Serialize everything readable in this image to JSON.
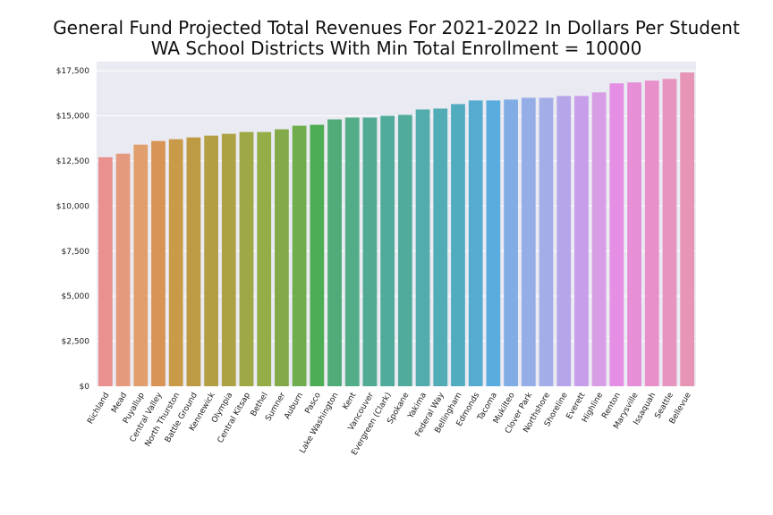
{
  "chart_data": {
    "type": "bar",
    "title": "General Fund Projected Total Revenues For 2021-2022 In Dollars Per Student",
    "subtitle": "WA School Districts With Min Total Enrollment = 10000",
    "xlabel": "",
    "ylabel": "",
    "ylim": [
      0,
      18000
    ],
    "yticks": [
      0,
      2500,
      5000,
      7500,
      10000,
      12500,
      15000,
      17500
    ],
    "ytick_labels": [
      "$0",
      "$2,500",
      "$5,000",
      "$7,500",
      "$10,000",
      "$12,500",
      "$15,000",
      "$17,500"
    ],
    "grid": true,
    "legend": "none",
    "categories": [
      "Richland",
      "Mead",
      "Puyallup",
      "Central Valley",
      "North Thurston",
      "Battle Ground",
      "Kennewick",
      "Olympia",
      "Central Kitsap",
      "Bethel",
      "Sumner",
      "Auburn",
      "Pasco",
      "Lake Washington",
      "Kent",
      "Vancouver",
      "Evergreen (Clark)",
      "Spokane",
      "Yakima",
      "Federal Way",
      "Bellingham",
      "Edmonds",
      "Tacoma",
      "Mukilteo",
      "Clover Park",
      "Northshore",
      "Shoreline",
      "Everett",
      "Highline",
      "Renton",
      "Marysville",
      "Issaquah",
      "Seattle",
      "Bellevue"
    ],
    "values": [
      12700,
      12900,
      13400,
      13600,
      13700,
      13800,
      13900,
      14000,
      14100,
      14100,
      14250,
      14450,
      14500,
      14800,
      14900,
      14900,
      15000,
      15050,
      15350,
      15400,
      15650,
      15850,
      15850,
      15900,
      16000,
      16000,
      16100,
      16100,
      16300,
      16800,
      16850,
      16950,
      17050,
      17400
    ],
    "colors": [
      "#e8918f",
      "#e49a7d",
      "#e19f6d",
      "#d79455",
      "#c99a47",
      "#bd9a44",
      "#b49e44",
      "#aca244",
      "#9ea844",
      "#94ad46",
      "#83a94a",
      "#6fad4d",
      "#4cad55",
      "#4fab78",
      "#52ad88",
      "#50ab92",
      "#51ab9b",
      "#51ab9b",
      "#52acad",
      "#51acb6",
      "#52acc0",
      "#56acd0",
      "#5aacdf",
      "#80aee4",
      "#95aee7",
      "#a3aee9",
      "#b5a6ea",
      "#c79eea",
      "#d79ee6",
      "#e48fe4",
      "#e68ed6",
      "#e790c9",
      "#e795c0",
      "#e695b4"
    ]
  }
}
